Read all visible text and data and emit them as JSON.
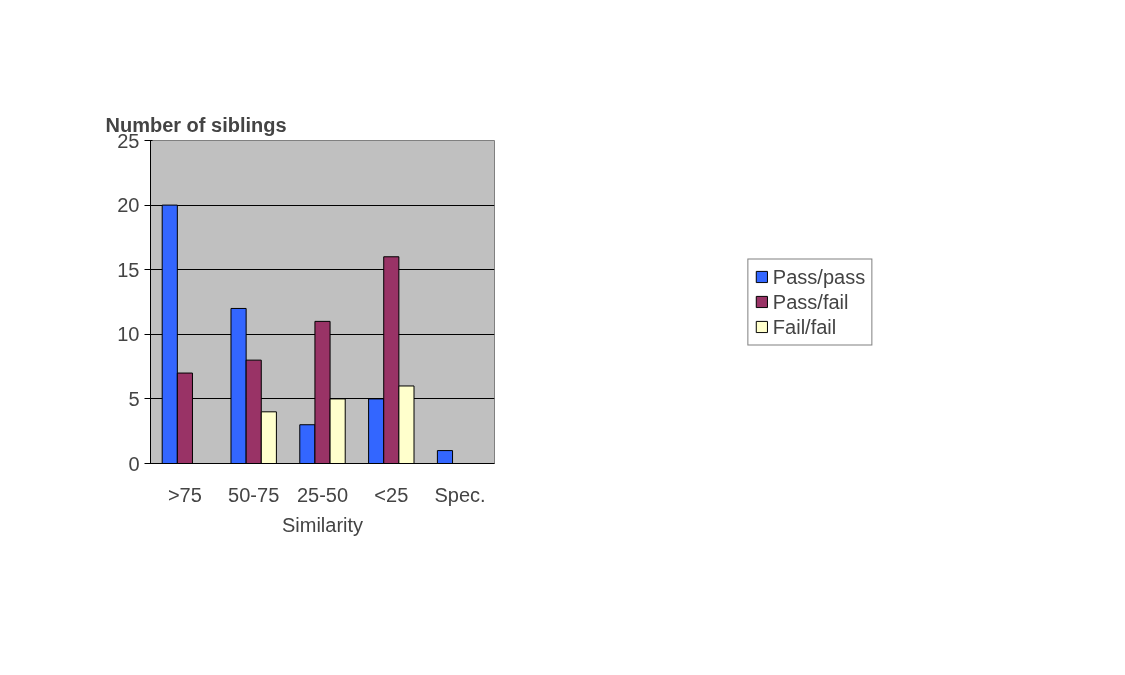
{
  "chart_data": {
    "type": "bar",
    "ylabel": "Number of siblings",
    "xlabel": "Similarity",
    "categories": [
      ">75",
      "50-75",
      "25-50",
      "<25",
      "Spec."
    ],
    "series": [
      {
        "name": "Pass/pass",
        "color": "#3366ff",
        "values": [
          20,
          12,
          3,
          5,
          1
        ]
      },
      {
        "name": "Pass/fail",
        "color": "#993366",
        "values": [
          7,
          8,
          11,
          16,
          null
        ]
      },
      {
        "name": "Fail/fail",
        "color": "#ffffcc",
        "values": [
          null,
          4,
          5,
          6,
          null
        ]
      }
    ],
    "ylim": [
      0,
      25
    ],
    "yticks": [
      0,
      5,
      10,
      15,
      20,
      25
    ],
    "grid": "y",
    "legend": "right"
  }
}
